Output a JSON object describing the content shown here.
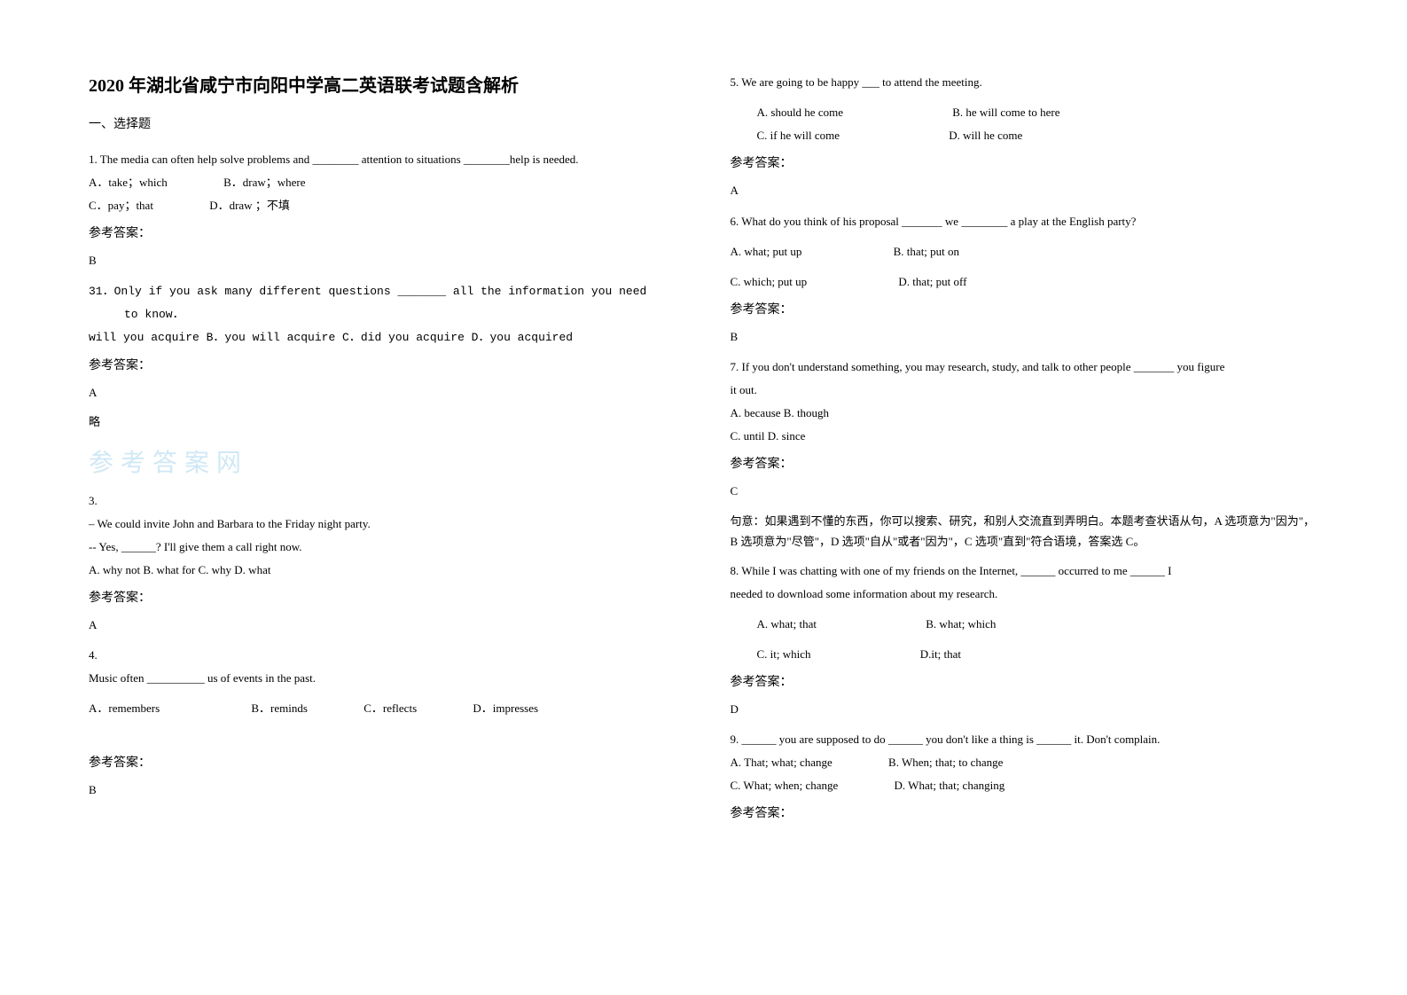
{
  "title": "2020 年湖北省咸宁市向阳中学高二英语联考试题含解析",
  "section_title": "一、选择题",
  "answer_label": "参考答案：",
  "omit": "略",
  "watermark": "参考答案网",
  "left": {
    "q1": {
      "stem": "1. The media can often help solve problems and ________ attention to situations ________help is needed.",
      "options": {
        "a": "A．take；which",
        "b": "B．draw；where",
        "c": "C．pay；that",
        "d": "D．draw ；不填"
      },
      "answer": "B"
    },
    "q31": {
      "stem1": "31．Only if you ask many different questions _______ all the information you need",
      "stem2": "to know．",
      "options": "will you acquire B．you will acquire C．did you acquire    D．you acquired",
      "answer": "A"
    },
    "q3": {
      "num": "3.",
      "line1": "– We could invite John and Barbara to the Friday night party.",
      "line2": "-- Yes, ______? I'll give them a call right now.",
      "options": "A. why not    B. what for    C. why    D. what",
      "answer": "A"
    },
    "q4": {
      "num": "4.",
      "stem": "Music often __________ us of events in the past.",
      "options": {
        "a": "A．remembers",
        "b": "B．reminds",
        "c": "C．reflects",
        "d": "D．impresses"
      },
      "answer": "B"
    }
  },
  "right": {
    "q5": {
      "stem": "5. We are going to be happy ___ to attend the meeting.",
      "options": {
        "a": "A. should he come",
        "b": "B. he will come to here",
        "c": "C. if he will come",
        "d": "D. will he come"
      },
      "answer": "A"
    },
    "q6": {
      "stem": "6. What do you think of his proposal _______ we ________ a play at the English party?",
      "options": {
        "a": "A. what; put up",
        "b": "B. that; put on",
        "c": "C. which; put up",
        "d": "D. that; put off"
      },
      "answer": "B"
    },
    "q7": {
      "stem1": "7. If you don't understand something, you may research, study, and talk to other people _______ you figure",
      "stem2": "it out.",
      "options1": "A. because    B. though",
      "options2": "C. until    D. since",
      "answer": "C",
      "explanation": "句意：如果遇到不懂的东西，你可以搜索、研究，和别人交流直到弄明白。本题考查状语从句，A 选项意为\"因为\"，B 选项意为\"尽管\"，D 选项\"自从\"或者\"因为\"，C 选项\"直到\"符合语境，答案选 C。"
    },
    "q8": {
      "stem1": "8. While I was chatting with one of my friends on the Internet, ______ occurred to me ______ I",
      "stem2": "needed to download some information about my research.",
      "options": {
        "a": "A. what; that",
        "b": "B. what; which",
        "c": "C. it; which",
        "d": "D.it; that"
      },
      "answer": "D"
    },
    "q9": {
      "stem": "9. ______ you are supposed to do ______ you don't like a thing is ______ it. Don't complain.",
      "options1": {
        "a": "A. That; what; change",
        "b": "B. When; that; to change"
      },
      "options2": {
        "c": "C. What; when; change",
        "d": "D. What; that; changing"
      }
    }
  }
}
